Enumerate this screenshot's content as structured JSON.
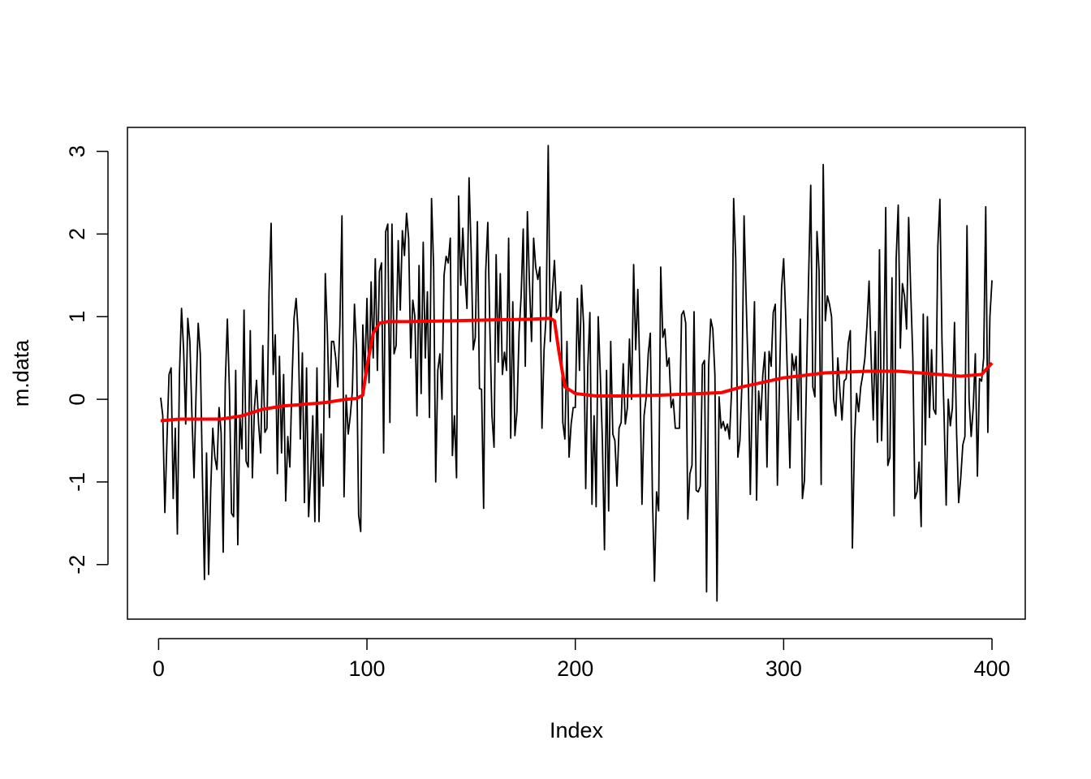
{
  "chart_data": {
    "type": "line",
    "xlabel": "Index",
    "ylabel": "m.data",
    "xlim": [
      -14.96,
      415.96
    ],
    "ylim": [
      -2.66,
      3.29
    ],
    "xticks": [
      0,
      100,
      200,
      300,
      400
    ],
    "yticks": [
      -2,
      -1,
      0,
      1,
      2,
      3
    ],
    "series": [
      {
        "color": "#000000",
        "width": 1.8,
        "x": [
          1,
          2,
          3,
          4,
          5,
          6,
          7,
          8,
          9,
          10,
          11,
          12,
          13,
          14,
          15,
          16,
          17,
          18,
          19,
          20,
          21,
          22,
          23,
          24,
          25,
          26,
          27,
          28,
          29,
          30,
          31,
          32,
          33,
          34,
          35,
          36,
          37,
          38,
          39,
          40,
          41,
          42,
          43,
          44,
          45,
          46,
          47,
          48,
          49,
          50,
          51,
          52,
          53,
          54,
          55,
          56,
          57,
          58,
          59,
          60,
          61,
          62,
          63,
          64,
          65,
          66,
          67,
          68,
          69,
          70,
          71,
          72,
          73,
          74,
          75,
          76,
          77,
          78,
          79,
          80,
          81,
          82,
          83,
          84,
          85,
          86,
          87,
          88,
          89,
          90,
          91,
          92,
          93,
          94,
          95,
          96,
          97,
          98,
          99,
          100,
          101,
          102,
          103,
          104,
          105,
          106,
          107,
          108,
          109,
          110,
          111,
          112,
          113,
          114,
          115,
          116,
          117,
          118,
          119,
          120,
          121,
          122,
          123,
          124,
          125,
          126,
          127,
          128,
          129,
          130,
          131,
          132,
          133,
          134,
          135,
          136,
          137,
          138,
          139,
          140,
          141,
          142,
          143,
          144,
          145,
          146,
          147,
          148,
          149,
          150,
          151,
          152,
          153,
          154,
          155,
          156,
          157,
          158,
          159,
          160,
          161,
          162,
          163,
          164,
          165,
          166,
          167,
          168,
          169,
          170,
          171,
          172,
          173,
          174,
          175,
          176,
          177,
          178,
          179,
          180,
          181,
          182,
          183,
          184,
          185,
          186,
          187,
          188,
          189,
          190,
          191,
          192,
          193,
          194,
          195,
          196,
          197,
          198,
          199,
          200,
          201,
          202,
          203,
          204,
          205,
          206,
          207,
          208,
          209,
          210,
          211,
          212,
          213,
          214,
          215,
          216,
          217,
          218,
          219,
          220,
          221,
          222,
          223,
          224,
          225,
          226,
          227,
          228,
          229,
          230,
          231,
          232,
          233,
          234,
          235,
          236,
          237,
          238,
          239,
          240,
          241,
          242,
          243,
          244,
          245,
          246,
          247,
          248,
          249,
          250,
          251,
          252,
          253,
          254,
          255,
          256,
          257,
          258,
          259,
          260,
          261,
          262,
          263,
          264,
          265,
          266,
          267,
          268,
          269,
          270,
          271,
          272,
          273,
          274,
          275,
          276,
          277,
          278,
          279,
          280,
          281,
          282,
          283,
          284,
          285,
          286,
          287,
          288,
          289,
          290,
          291,
          292,
          293,
          294,
          295,
          296,
          297,
          298,
          299,
          300,
          301,
          302,
          303,
          304,
          305,
          306,
          307,
          308,
          309,
          310,
          311,
          312,
          313,
          314,
          315,
          316,
          317,
          318,
          319,
          320,
          321,
          322,
          323,
          324,
          325,
          326,
          327,
          328,
          329,
          330,
          331,
          332,
          333,
          334,
          335,
          336,
          337,
          338,
          339,
          340,
          341,
          342,
          343,
          344,
          345,
          346,
          347,
          348,
          349,
          350,
          351,
          352,
          353,
          354,
          355,
          356,
          357,
          358,
          359,
          360,
          361,
          362,
          363,
          364,
          365,
          366,
          367,
          368,
          369,
          370,
          371,
          372,
          373,
          374,
          375,
          376,
          377,
          378,
          379,
          380,
          381,
          382,
          383,
          384,
          385,
          386,
          387,
          388,
          389,
          390,
          391,
          392,
          393,
          394,
          395,
          396,
          397,
          398,
          399,
          400
        ],
        "values": [
          0.02,
          -0.2,
          -1.37,
          -0.5,
          0.3,
          0.38,
          -1.2,
          -0.35,
          -1.63,
          0.3,
          1.1,
          0.6,
          -0.3,
          0.98,
          0.7,
          -0.2,
          -0.95,
          0.1,
          0.92,
          0.55,
          -0.9,
          -2.18,
          -0.65,
          -2.12,
          -1.1,
          -0.35,
          -0.7,
          -0.85,
          -0.1,
          -0.4,
          -1.85,
          0.2,
          0.97,
          0.1,
          -1.38,
          -1.42,
          0.35,
          -1.76,
          -0.2,
          -0.6,
          1.08,
          -0.75,
          -0.82,
          0.83,
          -0.95,
          -0.1,
          0.23,
          -0.3,
          -0.65,
          0.65,
          -0.4,
          -0.35,
          1.3,
          2.13,
          0.3,
          0.78,
          -0.9,
          0.52,
          -0.65,
          0.3,
          -1.23,
          -0.45,
          -0.82,
          0.2,
          0.98,
          1.22,
          0.8,
          -0.48,
          0.56,
          -1.25,
          0.38,
          -1.42,
          -0.9,
          -0.2,
          -1.48,
          0.38,
          -1.48,
          -0.42,
          -1.05,
          1.52,
          0.8,
          -0.22,
          0.7,
          0.7,
          0.5,
          0.15,
          0.9,
          2.22,
          -1.18,
          0.05,
          -0.42,
          -0.2,
          0.1,
          1.15,
          0.6,
          -1.4,
          -1.6,
          0.9,
          0.3,
          1.22,
          0.2,
          1.42,
          0.5,
          1.7,
          0.35,
          1.55,
          1.65,
          -0.65,
          2.03,
          2.12,
          -0.28,
          2.12,
          0.55,
          0.65,
          1.92,
          1.08,
          2.04,
          1.74,
          2.25,
          1.95,
          0.5,
          1.2,
          1.0,
          -0.2,
          1.62,
          0.07,
          1.9,
          0.5,
          1.3,
          -0.22,
          2.43,
          1.6,
          -1.0,
          0.35,
          0.55,
          0.0,
          1.5,
          1.73,
          1.65,
          1.95,
          -0.68,
          -0.2,
          -0.95,
          2.46,
          1.38,
          2.07,
          1.5,
          1.1,
          2.68,
          1.8,
          0.6,
          0.75,
          2.15,
          0.13,
          0.12,
          -1.32,
          1.55,
          2.14,
          0.85,
          -0.2,
          -0.58,
          1.75,
          0.45,
          1.52,
          0.3,
          0.57,
          0.35,
          1.95,
          -0.47,
          1.18,
          -0.44,
          -0.15,
          0.8,
          1.25,
          2.06,
          0.4,
          2.27,
          1.4,
          0.7,
          1.95,
          1.6,
          1.45,
          1.6,
          -0.35,
          0.6,
          1.0,
          3.07,
          0.7,
          1.3,
          1.68,
          1.05,
          1.1,
          1.3,
          -0.28,
          -0.48,
          0.7,
          -0.7,
          -0.3,
          -0.1,
          -0.1,
          1.22,
          0.35,
          1.38,
          0.9,
          -1.08,
          0.4,
          1.05,
          -1.27,
          -0.2,
          -1.3,
          1.0,
          0.3,
          -0.5,
          -1.82,
          0.35,
          -1.35,
          0.7,
          -0.42,
          -0.5,
          -1.05,
          -0.35,
          -0.28,
          0.43,
          -0.3,
          -0.1,
          0.73,
          0.0,
          1.63,
          0.6,
          1.33,
          0.3,
          -1.27,
          -0.2,
          0.02,
          0.55,
          0.8,
          -1.15,
          -2.2,
          -1.12,
          -1.35,
          1.6,
          0.75,
          0.85,
          0.4,
          0.5,
          -0.1,
          0.0,
          -0.35,
          -0.35,
          -0.35,
          1.02,
          1.07,
          0.92,
          -1.45,
          -0.9,
          -0.8,
          1.06,
          -1.1,
          -1.12,
          -1.05,
          0.42,
          0.47,
          -2.33,
          0.4,
          0.97,
          0.85,
          0.3,
          -2.44,
          0.03,
          -0.35,
          -0.27,
          -0.38,
          -0.3,
          -0.48,
          0.1,
          2.43,
          1.7,
          -0.7,
          -0.5,
          0.2,
          2.22,
          1.2,
          0.3,
          -1.15,
          0.18,
          1.18,
          -1.22,
          0.1,
          -0.25,
          0.3,
          0.57,
          -0.82,
          0.58,
          0.4,
          1.05,
          1.15,
          -1.04,
          0.2,
          1.35,
          1.7,
          1.0,
          0.1,
          -0.83,
          0.55,
          0.35,
          0.52,
          -0.25,
          0.97,
          -1.2,
          -0.98,
          0.3,
          1.5,
          2.59,
          0.15,
          0.03,
          2.03,
          1.55,
          -1.03,
          2.84,
          0.95,
          1.25,
          1.15,
          1.0,
          0.0,
          -0.2,
          0.5,
          0.1,
          -0.25,
          0.22,
          0.25,
          0.68,
          0.83,
          -1.8,
          -0.5,
          0.07,
          -0.15,
          0.15,
          0.3,
          0.5,
          0.9,
          1.43,
          0.5,
          -0.25,
          0.82,
          -0.52,
          1.81,
          -0.5,
          0.3,
          2.32,
          -0.8,
          -0.7,
          1.47,
          -1.41,
          1.7,
          2.35,
          0.62,
          1.4,
          1.25,
          0.85,
          2.2,
          1.3,
          0.5,
          -1.2,
          -1.12,
          -0.76,
          -1.54,
          1.03,
          -0.55,
          1.0,
          -0.22,
          0.6,
          -0.12,
          -0.18,
          1.85,
          2.42,
          0.7,
          -0.2,
          -1.28,
          0.0,
          -0.32,
          -0.1,
          0.93,
          -0.4,
          -1.25,
          -0.95,
          -0.55,
          -0.45,
          2.1,
          0.0,
          -0.45,
          -0.1,
          0.55,
          -0.93,
          0.25,
          0.22,
          0.5,
          2.33,
          -0.4,
          1.0,
          1.44
        ]
      },
      {
        "color": "#ff0000",
        "width": 4,
        "x": [
          1,
          10,
          20,
          30,
          40,
          50,
          60,
          70,
          80,
          90,
          95,
          98,
          100,
          103,
          106,
          110,
          120,
          140,
          160,
          180,
          188,
          190,
          192,
          195,
          200,
          210,
          220,
          240,
          260,
          270,
          280,
          300,
          320,
          340,
          355,
          370,
          385,
          395,
          400
        ],
        "values": [
          -0.26,
          -0.24,
          -0.24,
          -0.24,
          -0.2,
          -0.12,
          -0.08,
          -0.06,
          -0.04,
          0.0,
          0.01,
          0.05,
          0.4,
          0.8,
          0.92,
          0.94,
          0.94,
          0.95,
          0.96,
          0.97,
          0.98,
          0.95,
          0.6,
          0.15,
          0.07,
          0.04,
          0.04,
          0.05,
          0.07,
          0.08,
          0.15,
          0.26,
          0.32,
          0.34,
          0.34,
          0.31,
          0.28,
          0.3,
          0.44
        ]
      }
    ]
  }
}
